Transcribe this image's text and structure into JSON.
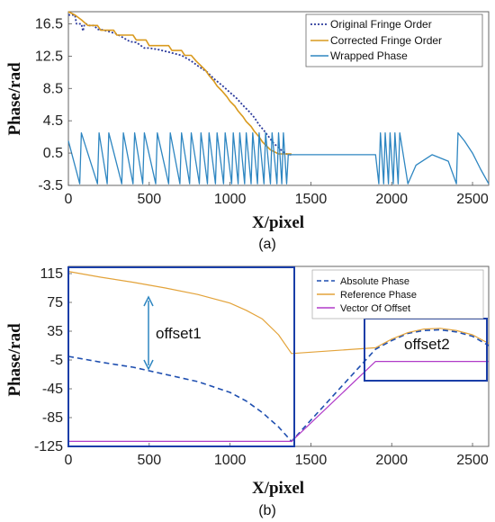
{
  "colors": {
    "original": "#2b3a9c",
    "corrected": "#d99a1e",
    "wrapped": "#2e86c1",
    "absolute": "#1f4fb0",
    "reference": "#e3a33a",
    "offset": "#b03ac8",
    "box": "#1a3ea8"
  },
  "chart_data": [
    {
      "type": "line",
      "panel": "(a)",
      "caption": "(a)",
      "xlabel": "X/pixel",
      "ylabel": "Phase/rad",
      "xlim": [
        0,
        2600
      ],
      "ylim": [
        -3.5,
        18
      ],
      "xticks": [
        0,
        500,
        1000,
        1500,
        2000,
        2500
      ],
      "xtick_labels": [
        "0",
        "500",
        "1000",
        "1500",
        "2000",
        "2500"
      ],
      "yticks": [
        -3.5,
        0.5,
        4.5,
        8.5,
        12.5,
        16.5
      ],
      "ytick_labels": [
        "-3.5",
        "0.5",
        "4.5",
        "8.5",
        "12.5",
        "16.5"
      ],
      "legend_position": "top-right",
      "series": [
        {
          "name": "Original Fringe Order",
          "style": "dotted",
          "x": [
            0,
            40,
            50,
            80,
            90,
            100,
            110,
            130,
            160,
            180,
            200,
            240,
            290,
            320,
            380,
            420,
            470,
            500,
            560,
            620,
            700,
            760,
            800,
            860,
            900,
            950,
            1000,
            1040,
            1080,
            1120,
            1150,
            1180,
            1210,
            1240,
            1270,
            1300,
            1330,
            1360,
            1380
          ],
          "y": [
            17.6,
            17.6,
            16.5,
            16.5,
            15.6,
            16.5,
            16.5,
            16.3,
            16.3,
            15.8,
            15.8,
            15.6,
            15.3,
            15.0,
            14.3,
            14.2,
            13.5,
            13.5,
            13.3,
            13.0,
            12.6,
            11.9,
            11.3,
            10.5,
            9.7,
            8.9,
            8.0,
            7.3,
            6.4,
            5.6,
            4.9,
            4.0,
            3.3,
            2.5,
            1.7,
            1.2,
            0.6,
            0.3,
            0.3
          ]
        },
        {
          "name": "Corrected Fringe Order",
          "style": "solid",
          "x": [
            0,
            40,
            80,
            120,
            180,
            200,
            280,
            300,
            400,
            420,
            480,
            500,
            620,
            640,
            700,
            720,
            760,
            790,
            820,
            850,
            870,
            900,
            920,
            950,
            980,
            1000,
            1030,
            1050,
            1080,
            1100,
            1130,
            1150,
            1180,
            1200,
            1230,
            1250,
            1280,
            1300,
            1330,
            1360,
            1380
          ],
          "y": [
            18.0,
            17.6,
            17.0,
            16.3,
            16.3,
            15.7,
            15.7,
            15.1,
            15.1,
            14.5,
            14.5,
            13.8,
            13.8,
            13.2,
            13.2,
            12.6,
            12.6,
            11.9,
            11.3,
            10.7,
            10.1,
            9.4,
            8.8,
            8.2,
            7.5,
            6.9,
            6.3,
            5.7,
            5.0,
            4.4,
            3.8,
            3.2,
            2.5,
            1.9,
            1.3,
            0.9,
            0.6,
            0.4,
            0.4,
            0.4,
            0.4
          ]
        },
        {
          "name": "Wrapped Phase",
          "style": "solid",
          "x": [
            0,
            70,
            80,
            180,
            190,
            240,
            250,
            330,
            340,
            400,
            410,
            460,
            470,
            540,
            550,
            620,
            630,
            690,
            700,
            750,
            760,
            810,
            820,
            860,
            870,
            910,
            920,
            960,
            970,
            1010,
            1020,
            1050,
            1060,
            1090,
            1100,
            1130,
            1140,
            1170,
            1180,
            1210,
            1220,
            1250,
            1260,
            1290,
            1300,
            1320,
            1330,
            1350,
            1360,
            1380,
            1900,
            1920,
            1930,
            1950,
            1960,
            1980,
            1990,
            2010,
            2020,
            2040,
            2050,
            2100,
            2150,
            2250,
            2350,
            2400,
            2410,
            2450,
            2500,
            2550,
            2600
          ],
          "y": [
            2.0,
            -3.3,
            3.0,
            -3.3,
            3.0,
            -3.3,
            3.0,
            -3.3,
            3.0,
            -3.3,
            3.0,
            -3.3,
            3.0,
            -3.3,
            3.0,
            -3.3,
            3.0,
            -3.3,
            3.0,
            -3.3,
            3.0,
            -3.3,
            3.0,
            -3.3,
            3.0,
            -3.3,
            3.0,
            -3.3,
            3.0,
            -3.3,
            3.0,
            -3.3,
            3.0,
            -3.3,
            3.0,
            -3.3,
            3.0,
            -3.3,
            3.0,
            -3.3,
            3.0,
            -3.3,
            3.0,
            -3.3,
            3.0,
            -3.3,
            3.0,
            -3.3,
            0.3,
            0.3,
            0.3,
            -3.3,
            3.0,
            -3.3,
            3.0,
            -3.3,
            3.0,
            -3.3,
            3.0,
            -3.3,
            3.0,
            -3.3,
            -1.0,
            0.3,
            -0.5,
            -3.3,
            3.0,
            2.0,
            0.5,
            -1.5,
            -3.3
          ]
        }
      ]
    },
    {
      "type": "line",
      "panel": "(b)",
      "caption": "(b)",
      "xlabel": "X/pixel",
      "ylabel": "Phase/rad",
      "xlim": [
        0,
        2600
      ],
      "ylim": [
        -125,
        125
      ],
      "xticks": [
        0,
        500,
        1000,
        1500,
        2000,
        2500
      ],
      "xtick_labels": [
        "0",
        "500",
        "1000",
        "1500",
        "2000",
        "2500"
      ],
      "yticks": [
        -125,
        -85,
        -45,
        -5,
        35,
        75,
        115
      ],
      "ytick_labels": [
        "-125",
        "-85",
        "-45",
        "-5",
        "35",
        "75",
        "115"
      ],
      "legend_position": "top-right",
      "annotations": [
        "offset1",
        "offset2"
      ],
      "series": [
        {
          "name": "Absolute Phase",
          "style": "dashed",
          "x": [
            0,
            200,
            400,
            600,
            800,
            1000,
            1100,
            1200,
            1300,
            1380,
            1900,
            2000,
            2100,
            2200,
            2300,
            2400,
            2500,
            2600
          ],
          "y": [
            0,
            -8,
            -15,
            -25,
            -35,
            -50,
            -62,
            -78,
            -98,
            -118,
            10,
            22,
            32,
            36,
            37,
            34,
            28,
            15
          ]
        },
        {
          "name": "Reference Phase",
          "style": "solid",
          "x": [
            0,
            200,
            400,
            600,
            800,
            1000,
            1100,
            1200,
            1300,
            1380,
            1900,
            2000,
            2100,
            2200,
            2300,
            2400,
            2500,
            2600
          ],
          "y": [
            118,
            110,
            103,
            95,
            86,
            74,
            64,
            52,
            30,
            4,
            12,
            24,
            33,
            38,
            39,
            36,
            30,
            18
          ]
        },
        {
          "name": "Vector Of Offset",
          "style": "solid",
          "x": [
            0,
            1380,
            1900,
            2600
          ],
          "y": [
            -118,
            -118,
            -7,
            -7
          ]
        }
      ]
    }
  ]
}
